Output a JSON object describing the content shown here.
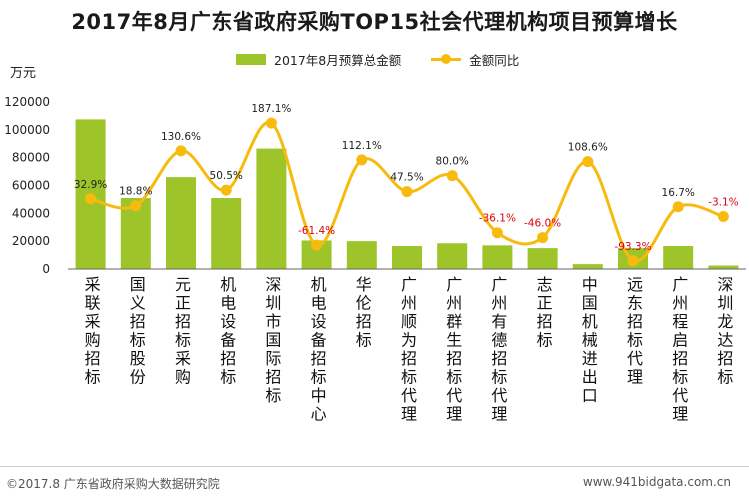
{
  "chart_data": {
    "type": "bar+line",
    "title": "2017年8月广东省政府采购TOP15社会代理机构项目预算增长",
    "ylabel": "万元",
    "ylim": [
      0,
      120000
    ],
    "y_ticks": [
      0,
      20000,
      40000,
      60000,
      80000,
      100000,
      120000
    ],
    "y_tick_labels": [
      "0",
      "20000",
      "40000",
      "60000",
      "80000",
      "100000",
      "120000"
    ],
    "categories": [
      "采联采购招标",
      "国义招标股份",
      "元正招标采购",
      "机电设备招标",
      "深圳市国际招标",
      "机电设备招标中心",
      "华伦招标",
      "广州顺为招标代理",
      "广州群生招标代理",
      "广州有德招标代理",
      "志正招标",
      "中国机械进出口",
      "远东招标代理",
      "广州程启招标代理",
      "深圳龙达招标"
    ],
    "series": [
      {
        "name": "2017年8月预算总金额",
        "kind": "bar",
        "color": "#9dc52a",
        "values": [
          107500,
          51000,
          66000,
          51000,
          86500,
          20500,
          20000,
          16500,
          18500,
          17000,
          15000,
          3500,
          15000,
          16500,
          2500
        ]
      },
      {
        "name": "金额同比",
        "kind": "line",
        "color": "#f6bb0e",
        "values": [
          32.9,
          18.8,
          130.6,
          50.5,
          187.1,
          -61.4,
          112.1,
          47.5,
          80.0,
          -36.1,
          -46.0,
          108.6,
          -93.3,
          16.7,
          -3.1
        ],
        "labels": [
          "32.9%",
          "18.8%",
          "130.6%",
          "50.5%",
          "187.1%",
          "-61.4%",
          "112.1%",
          "47.5%",
          "80.0%",
          "-36.1%",
          "-46.0%",
          "108.6%",
          "-93.3%",
          "16.7%",
          "-3.1%"
        ],
        "secondary_axis_range": [
          -110,
          230
        ]
      }
    ],
    "legend": {
      "bar_label": "2017年8月预算总金额",
      "line_label": "金额同比",
      "placement": "top-center"
    },
    "colors": {
      "bar": "#9dc52a",
      "line": "#f6bb0e",
      "positive_label": "#222222",
      "negative_label": "#e0000b",
      "axis": "#666666"
    }
  },
  "footer": {
    "left": "©2017.8 广东省政府采购大数据研究院",
    "right": "www.941bidgata.com.cn"
  }
}
